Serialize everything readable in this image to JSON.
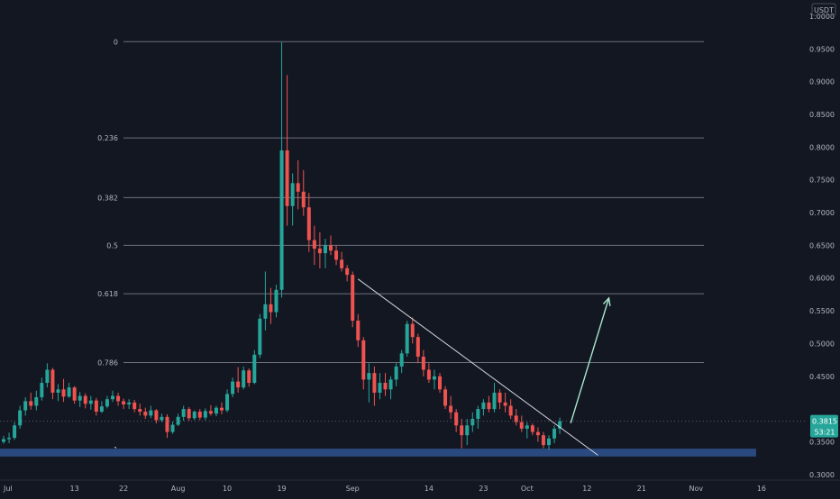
{
  "colors": {
    "background": "#131722",
    "up": "#26a69a",
    "down": "#ef5350",
    "fib_line": "#787b86",
    "axis_text": "#b2b5be",
    "zone": "#2a4a7f",
    "trendline": "#d1d4dc",
    "arrow": "#a8e6cf"
  },
  "chart_data": {
    "type": "candlestick",
    "currency_label": "USDT",
    "x_tick_labels": [
      "Jul",
      "13",
      "22",
      "Aug",
      "10",
      "19",
      "Sep",
      "14",
      "23",
      "Oct",
      "12",
      "21",
      "Nov",
      "16"
    ],
    "x_tick_index": [
      0,
      13,
      22,
      32,
      41,
      51,
      64,
      78,
      88,
      96,
      107,
      117,
      127,
      139
    ],
    "y_ticks": [
      "1.0000",
      "0.9500",
      "0.9000",
      "0.8500",
      "0.8000",
      "0.7500",
      "0.7000",
      "0.6500",
      "0.6000",
      "0.5500",
      "0.5000",
      "0.4500",
      "0.4000",
      "0.3500",
      "0.3000"
    ],
    "y_range": [
      0.2915,
      1.0247
    ],
    "last_price": {
      "label": "0.3815",
      "value": 0.3815,
      "countdown": "53:21"
    },
    "fib_levels": [
      {
        "label": "0",
        "value": 0.961
      },
      {
        "label": "0.236",
        "value": 0.814
      },
      {
        "label": "0.382",
        "value": 0.723
      },
      {
        "label": "0.5",
        "value": 0.65
      },
      {
        "label": "0.618",
        "value": 0.576
      },
      {
        "label": "0.786",
        "value": 0.471
      },
      {
        "label": "1",
        "value": 0.338
      }
    ],
    "support_zone": {
      "from_index": -1,
      "to_index": 138,
      "low": 0.3275,
      "high": 0.3395
    },
    "trendline": {
      "from": {
        "index": 65,
        "value": 0.5985
      },
      "to": {
        "index": 109,
        "value": 0.3295
      }
    },
    "projection_arrow": {
      "from": {
        "index": 104,
        "value": 0.3785
      },
      "to": {
        "index": 111,
        "value": 0.5695
      }
    },
    "candles": [
      [
        0.35,
        0.359,
        0.347,
        0.354
      ],
      [
        0.354,
        0.364,
        0.348,
        0.356
      ],
      [
        0.356,
        0.38,
        0.353,
        0.375
      ],
      [
        0.375,
        0.405,
        0.37,
        0.398
      ],
      [
        0.398,
        0.418,
        0.39,
        0.412
      ],
      [
        0.412,
        0.425,
        0.399,
        0.405
      ],
      [
        0.405,
        0.428,
        0.398,
        0.418
      ],
      [
        0.418,
        0.448,
        0.413,
        0.44
      ],
      [
        0.44,
        0.47,
        0.433,
        0.46
      ],
      [
        0.46,
        0.463,
        0.415,
        0.425
      ],
      [
        0.425,
        0.438,
        0.412,
        0.43
      ],
      [
        0.43,
        0.446,
        0.411,
        0.419
      ],
      [
        0.419,
        0.44,
        0.417,
        0.433
      ],
      [
        0.433,
        0.435,
        0.408,
        0.413
      ],
      [
        0.413,
        0.426,
        0.403,
        0.42
      ],
      [
        0.42,
        0.424,
        0.401,
        0.408
      ],
      [
        0.408,
        0.42,
        0.399,
        0.413
      ],
      [
        0.413,
        0.417,
        0.39,
        0.396
      ],
      [
        0.396,
        0.412,
        0.394,
        0.404
      ],
      [
        0.404,
        0.42,
        0.401,
        0.415
      ],
      [
        0.415,
        0.428,
        0.411,
        0.42
      ],
      [
        0.42,
        0.425,
        0.405,
        0.412
      ],
      [
        0.412,
        0.416,
        0.4,
        0.407
      ],
      [
        0.407,
        0.415,
        0.4,
        0.41
      ],
      [
        0.41,
        0.414,
        0.395,
        0.4
      ],
      [
        0.4,
        0.408,
        0.39,
        0.396
      ],
      [
        0.396,
        0.402,
        0.385,
        0.39
      ],
      [
        0.39,
        0.405,
        0.386,
        0.398
      ],
      [
        0.398,
        0.4,
        0.378,
        0.383
      ],
      [
        0.383,
        0.393,
        0.38,
        0.388
      ],
      [
        0.388,
        0.392,
        0.356,
        0.365
      ],
      [
        0.365,
        0.381,
        0.362,
        0.376
      ],
      [
        0.376,
        0.393,
        0.374,
        0.388
      ],
      [
        0.388,
        0.405,
        0.382,
        0.4
      ],
      [
        0.4,
        0.403,
        0.382,
        0.386
      ],
      [
        0.386,
        0.398,
        0.383,
        0.396
      ],
      [
        0.396,
        0.4,
        0.383,
        0.387
      ],
      [
        0.387,
        0.401,
        0.383,
        0.397
      ],
      [
        0.397,
        0.406,
        0.39,
        0.393
      ],
      [
        0.393,
        0.405,
        0.389,
        0.402
      ],
      [
        0.402,
        0.41,
        0.392,
        0.398
      ],
      [
        0.398,
        0.43,
        0.395,
        0.423
      ],
      [
        0.423,
        0.448,
        0.418,
        0.442
      ],
      [
        0.442,
        0.464,
        0.425,
        0.433
      ],
      [
        0.433,
        0.465,
        0.43,
        0.459
      ],
      [
        0.459,
        0.462,
        0.434,
        0.44
      ],
      [
        0.44,
        0.49,
        0.438,
        0.483
      ],
      [
        0.483,
        0.545,
        0.478,
        0.538
      ],
      [
        0.538,
        0.61,
        0.52,
        0.56
      ],
      [
        0.56,
        0.585,
        0.53,
        0.548
      ],
      [
        0.548,
        0.59,
        0.54,
        0.582
      ],
      [
        0.582,
        0.96,
        0.57,
        0.795
      ],
      [
        0.795,
        0.91,
        0.68,
        0.71
      ],
      [
        0.71,
        0.76,
        0.68,
        0.745
      ],
      [
        0.745,
        0.78,
        0.705,
        0.732
      ],
      [
        0.732,
        0.765,
        0.695,
        0.708
      ],
      [
        0.708,
        0.73,
        0.64,
        0.658
      ],
      [
        0.658,
        0.68,
        0.62,
        0.645
      ],
      [
        0.645,
        0.67,
        0.615,
        0.638
      ],
      [
        0.638,
        0.66,
        0.615,
        0.65
      ],
      [
        0.65,
        0.665,
        0.635,
        0.642
      ],
      [
        0.642,
        0.65,
        0.62,
        0.628
      ],
      [
        0.628,
        0.64,
        0.61,
        0.615
      ],
      [
        0.615,
        0.62,
        0.595,
        0.605
      ],
      [
        0.605,
        0.61,
        0.525,
        0.535
      ],
      [
        0.535,
        0.545,
        0.495,
        0.505
      ],
      [
        0.505,
        0.51,
        0.43,
        0.445
      ],
      [
        0.445,
        0.47,
        0.41,
        0.455
      ],
      [
        0.455,
        0.465,
        0.405,
        0.425
      ],
      [
        0.425,
        0.455,
        0.415,
        0.44
      ],
      [
        0.44,
        0.455,
        0.42,
        0.43
      ],
      [
        0.43,
        0.45,
        0.415,
        0.445
      ],
      [
        0.445,
        0.47,
        0.435,
        0.465
      ],
      [
        0.465,
        0.49,
        0.455,
        0.485
      ],
      [
        0.485,
        0.535,
        0.48,
        0.53
      ],
      [
        0.53,
        0.54,
        0.5,
        0.51
      ],
      [
        0.51,
        0.515,
        0.47,
        0.48
      ],
      [
        0.48,
        0.49,
        0.45,
        0.46
      ],
      [
        0.46,
        0.47,
        0.44,
        0.445
      ],
      [
        0.445,
        0.46,
        0.43,
        0.45
      ],
      [
        0.45,
        0.455,
        0.425,
        0.43
      ],
      [
        0.43,
        0.435,
        0.4,
        0.405
      ],
      [
        0.405,
        0.42,
        0.385,
        0.395
      ],
      [
        0.395,
        0.4,
        0.365,
        0.375
      ],
      [
        0.375,
        0.385,
        0.34,
        0.36
      ],
      [
        0.36,
        0.385,
        0.345,
        0.375
      ],
      [
        0.375,
        0.395,
        0.365,
        0.385
      ],
      [
        0.385,
        0.405,
        0.37,
        0.4
      ],
      [
        0.4,
        0.415,
        0.39,
        0.41
      ],
      [
        0.41,
        0.42,
        0.395,
        0.4
      ],
      [
        0.4,
        0.44,
        0.395,
        0.425
      ],
      [
        0.425,
        0.43,
        0.4,
        0.41
      ],
      [
        0.41,
        0.425,
        0.395,
        0.405
      ],
      [
        0.405,
        0.415,
        0.385,
        0.39
      ],
      [
        0.39,
        0.4,
        0.375,
        0.38
      ],
      [
        0.38,
        0.39,
        0.365,
        0.37
      ],
      [
        0.37,
        0.38,
        0.355,
        0.375
      ],
      [
        0.375,
        0.378,
        0.36,
        0.365
      ],
      [
        0.365,
        0.372,
        0.35,
        0.36
      ],
      [
        0.36,
        0.365,
        0.34,
        0.345
      ],
      [
        0.345,
        0.36,
        0.338,
        0.355
      ],
      [
        0.355,
        0.375,
        0.348,
        0.37
      ],
      [
        0.37,
        0.387,
        0.362,
        0.3815
      ]
    ]
  }
}
